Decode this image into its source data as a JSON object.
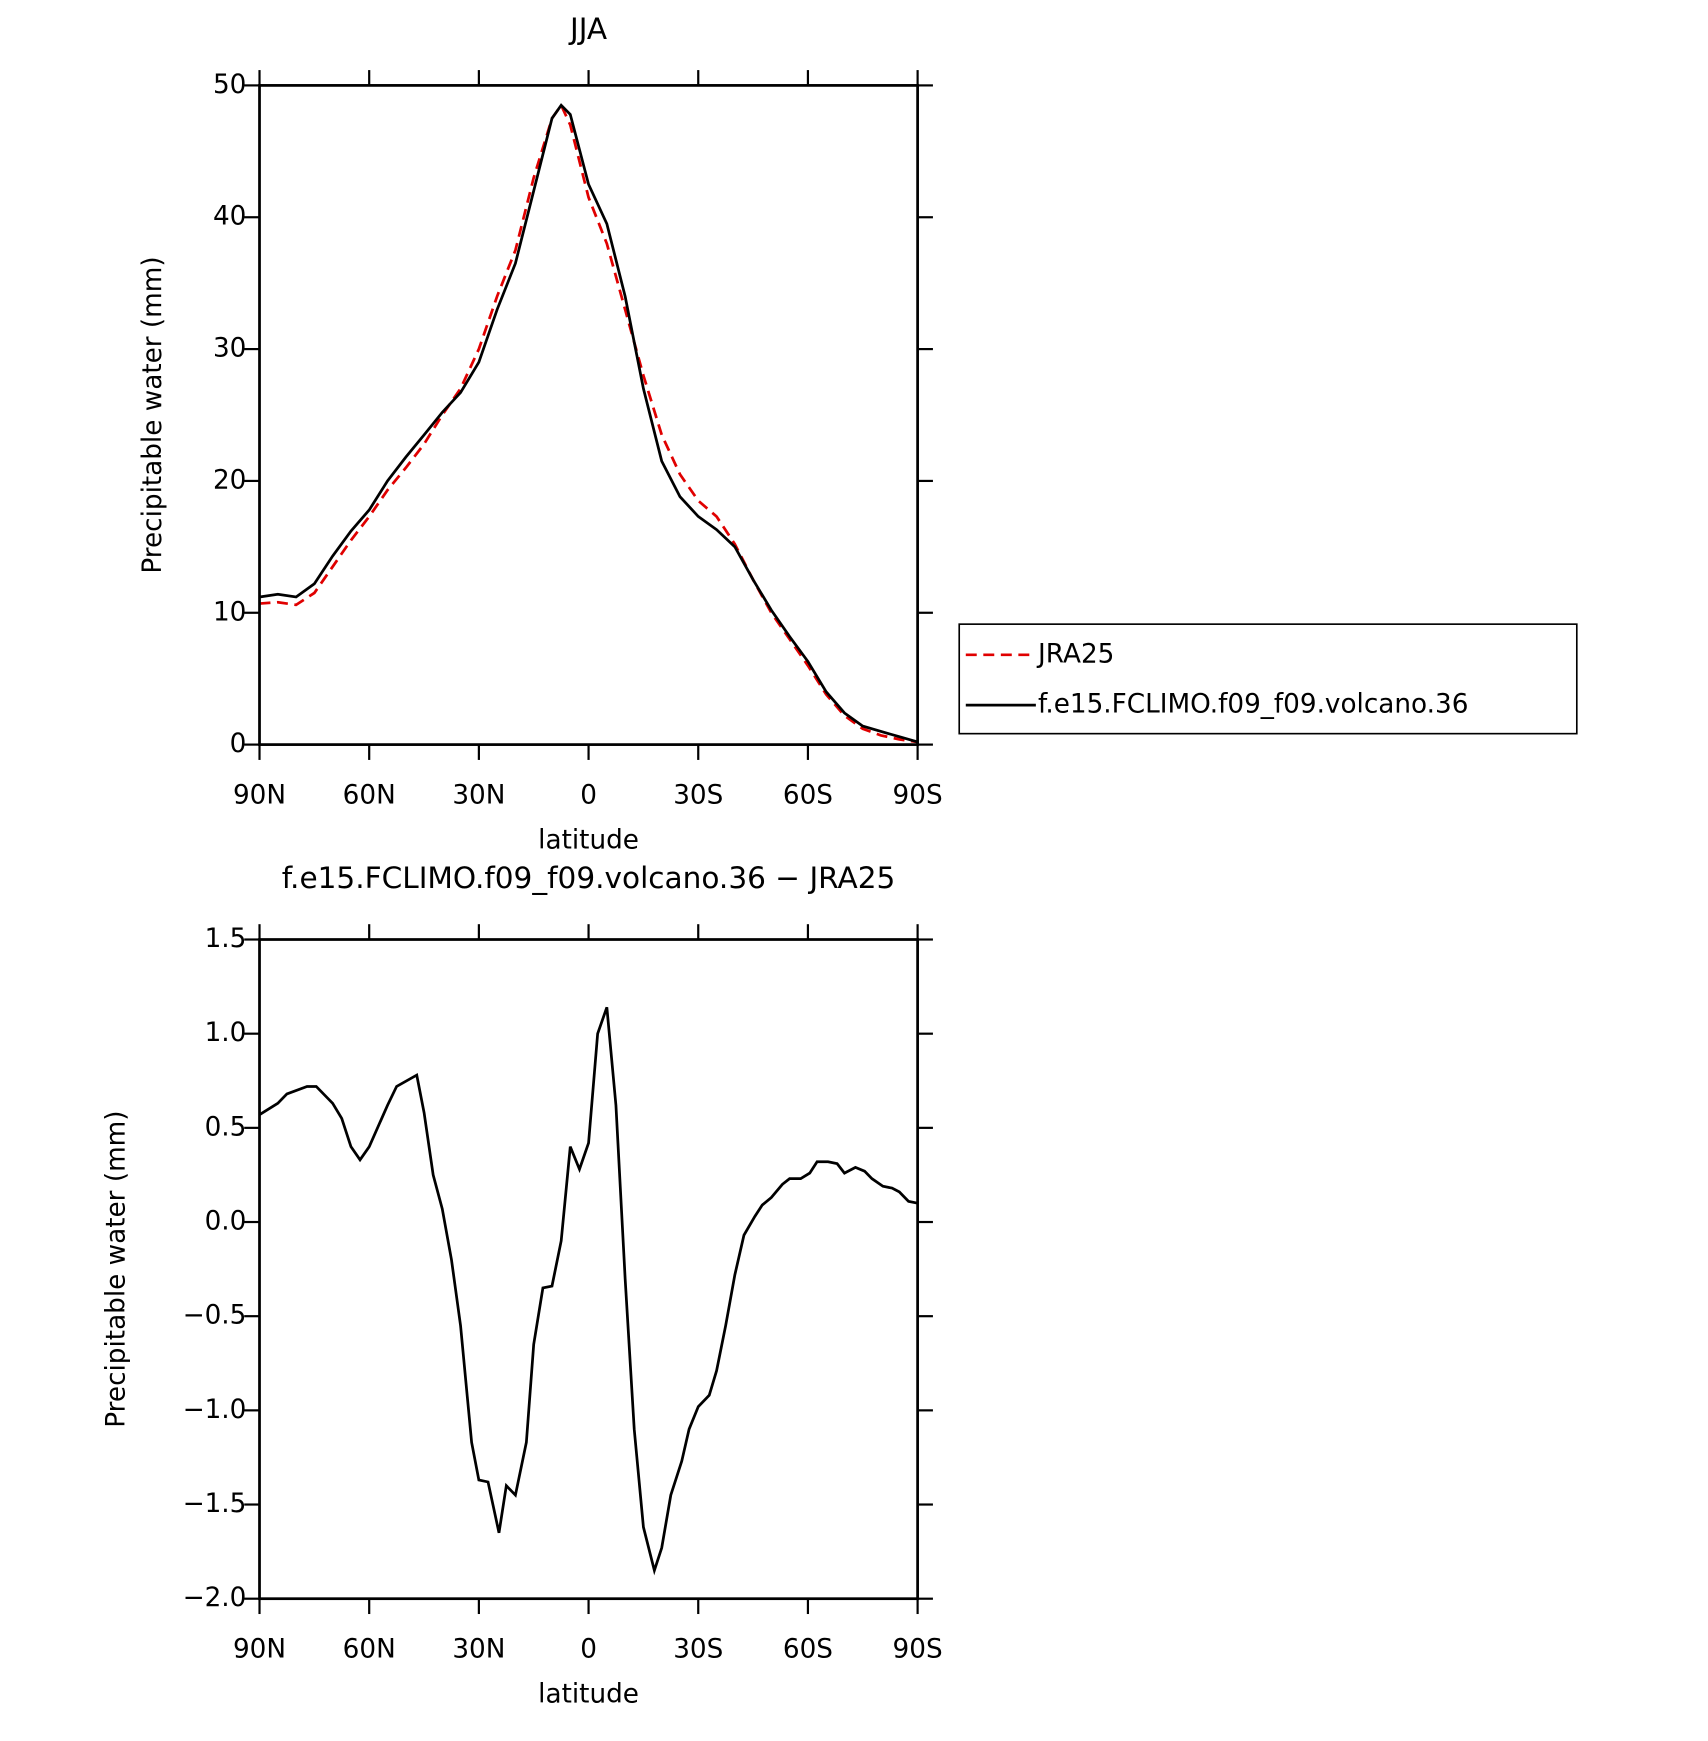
{
  "chart_data": [
    {
      "type": "line",
      "title": "JJA",
      "xlabel": "latitude",
      "ylabel": "Precipitable water (mm)",
      "x": [
        90,
        85,
        80,
        75,
        70,
        65,
        60,
        55,
        50,
        45,
        40,
        35,
        30,
        25,
        20,
        15,
        10,
        7.5,
        5,
        0,
        -5,
        -10,
        -15,
        -20,
        -25,
        -30,
        -35,
        -40,
        -45,
        -50,
        -55,
        -60,
        -65,
        -70,
        -75,
        -80,
        -85,
        -90
      ],
      "series": [
        {
          "name": "JRA25",
          "color": "#e00000",
          "linestyle": "dashed",
          "values": [
            10.7,
            10.8,
            10.6,
            11.5,
            13.5,
            15.5,
            17.3,
            19.3,
            21,
            22.8,
            25,
            27,
            30,
            34,
            37.5,
            43,
            47.5,
            48.5,
            47,
            41.5,
            38,
            33,
            28,
            23.5,
            20.5,
            18.5,
            17.3,
            15.2,
            12.5,
            10,
            8,
            6,
            3.8,
            2.2,
            1.2,
            0.7,
            0.4,
            0.2
          ]
        },
        {
          "name": "f.e15.FCLIMO.f09_f09.volcano.36",
          "color": "#000000",
          "linestyle": "solid",
          "values": [
            11.2,
            11.4,
            11.2,
            12.2,
            14.3,
            16.2,
            17.8,
            20,
            21.8,
            23.5,
            25.2,
            26.7,
            29,
            33,
            36.5,
            42,
            47.5,
            48.5,
            47.8,
            42.5,
            39.5,
            34,
            27,
            21.5,
            18.8,
            17.3,
            16.3,
            15,
            12.5,
            10.2,
            8.2,
            6.3,
            4,
            2.4,
            1.4,
            1,
            0.6,
            0.2
          ]
        }
      ],
      "xlim": [
        90,
        -90
      ],
      "xticks": [
        {
          "value": 90,
          "label": "90N"
        },
        {
          "value": 60,
          "label": "60N"
        },
        {
          "value": 30,
          "label": "30N"
        },
        0,
        {
          "value": -30,
          "label": "30S"
        },
        {
          "value": -60,
          "label": "60S"
        },
        {
          "value": -90,
          "label": "90S"
        }
      ],
      "ylim": [
        0,
        50
      ],
      "yticks": [
        0,
        10,
        20,
        30,
        40,
        50
      ],
      "legend": "right"
    },
    {
      "type": "line",
      "title": "f.e15.FCLIMO.f09_f09.volcano.36 − JRA25",
      "xlabel": "latitude",
      "ylabel": "Precipitable water (mm)",
      "x": [
        90,
        85,
        82.5,
        77,
        74.5,
        70,
        67.5,
        65,
        62.5,
        60,
        55,
        52.5,
        47,
        45,
        42.5,
        40,
        37.5,
        35,
        32,
        30,
        27.5,
        24.5,
        22.5,
        20,
        17,
        15,
        12.5,
        10,
        7.5,
        5,
        2.5,
        0,
        -2.5,
        -5,
        -7.5,
        -10,
        -12.5,
        -15,
        -18,
        -20,
        -22.5,
        -25.5,
        -27.5,
        -30,
        -33,
        -35,
        -37.5,
        -40,
        -42.5,
        -45.5,
        -47.5,
        -50,
        -53,
        -55,
        -58,
        -60.5,
        -62.5,
        -65.5,
        -68,
        -70,
        -73,
        -75.5,
        -77.5,
        -80.5,
        -83,
        -85,
        -87.5,
        -90
      ],
      "values": [
        0.57,
        0.63,
        0.68,
        0.72,
        0.72,
        0.63,
        0.55,
        0.4,
        0.33,
        0.4,
        0.62,
        0.72,
        0.78,
        0.58,
        0.25,
        0.07,
        -0.2,
        -0.55,
        -1.17,
        -1.37,
        -1.38,
        -1.65,
        -1.4,
        -1.45,
        -1.17,
        -0.65,
        -0.35,
        -0.34,
        -0.1,
        0.4,
        0.28,
        0.42,
        1,
        1.14,
        0.62,
        -0.3,
        -1.1,
        -1.62,
        -1.85,
        -1.73,
        -1.45,
        -1.27,
        -1.1,
        -0.98,
        -0.92,
        -0.79,
        -0.55,
        -0.28,
        -0.07,
        0.03,
        0.09,
        0.13,
        0.2,
        0.23,
        0.23,
        0.26,
        0.32,
        0.32,
        0.31,
        0.26,
        0.29,
        0.27,
        0.23,
        0.19,
        0.18,
        0.16,
        0.11,
        0.1
      ],
      "color": "#000000",
      "xlim": [
        90,
        -90
      ],
      "xticks": [
        {
          "value": 90,
          "label": "90N"
        },
        {
          "value": 60,
          "label": "60N"
        },
        {
          "value": 30,
          "label": "30N"
        },
        0,
        {
          "value": -30,
          "label": "30S"
        },
        {
          "value": -60,
          "label": "60S"
        },
        {
          "value": -90,
          "label": "90S"
        }
      ],
      "ylim": [
        -2,
        1.5
      ],
      "yticks": [
        {
          "value": 1.5,
          "label": "1.5"
        },
        {
          "value": 1,
          "label": "1.0"
        },
        {
          "value": 0.5,
          "label": "0.5"
        },
        {
          "value": 0,
          "label": "0.0"
        },
        {
          "value": -0.5,
          "label": "−0.5"
        },
        {
          "value": -1,
          "label": "−1.0"
        },
        {
          "value": -1.5,
          "label": "−1.5"
        },
        {
          "value": -2,
          "label": "−2.0"
        }
      ]
    }
  ]
}
